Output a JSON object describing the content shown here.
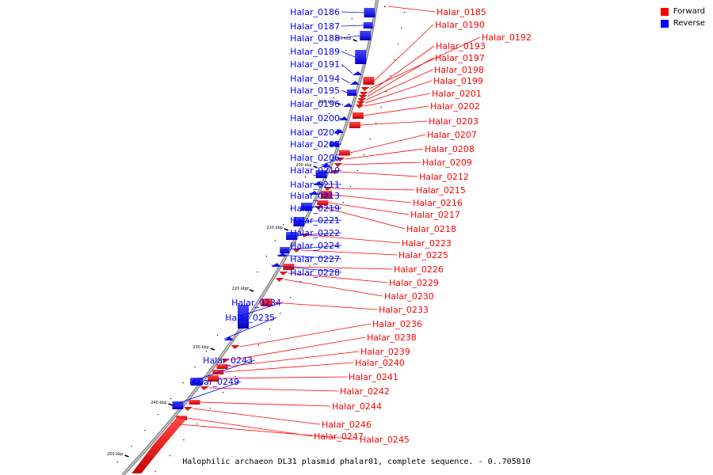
{
  "legend": {
    "forward_label": "Forward",
    "reverse_label": "Reverse",
    "forward_color": "#ff0000",
    "reverse_color": "#0000ff"
  },
  "caption": "Halophilic archaeon DL31 plasmid phalar01, complete sequence. - 0..705810",
  "ticks": [
    "180 kbp",
    "190 kbp",
    "200 kbp",
    "210 kbp",
    "220 kbp",
    "230 kbp",
    "240 kbp",
    "250 kbp"
  ],
  "reverse_genes": [
    "Halar_0186",
    "Halar_0187",
    "Halar_0188",
    "Halar_0189",
    "Halar_0191",
    "Halar_0194",
    "Halar_0195",
    "Halar_0196",
    "Halar_0200",
    "Halar_0204",
    "Halar_0205",
    "Halar_0206",
    "Halar_0210",
    "Halar_0211",
    "Halar_0213",
    "Halar_0219",
    "Halar_0221",
    "Halar_0222",
    "Halar_0224",
    "Halar_0227",
    "Halar_0228",
    "Halar_0234",
    "Halar_0235",
    "Halar_0243",
    "Halar_0249"
  ],
  "forward_genes": [
    "Halar_0185",
    "Halar_0190",
    "Halar_0192",
    "Halar_0193",
    "Halar_0197",
    "Halar_0198",
    "Halar_0199",
    "Halar_0201",
    "Halar_0202",
    "Halar_0203",
    "Halar_0207",
    "Halar_0208",
    "Halar_0209",
    "Halar_0212",
    "Halar_0215",
    "Halar_0216",
    "Halar_0217",
    "Halar_0218",
    "Halar_0223",
    "Halar_0225",
    "Halar_0226",
    "Halar_0229",
    "Halar_0230",
    "Halar_0233",
    "Halar_0236",
    "Halar_0238",
    "Halar_0239",
    "Halar_0240",
    "Halar_0241",
    "Halar_0242",
    "Halar_0244",
    "Halar_0246",
    "Halar_0247",
    "Halar_0245"
  ]
}
